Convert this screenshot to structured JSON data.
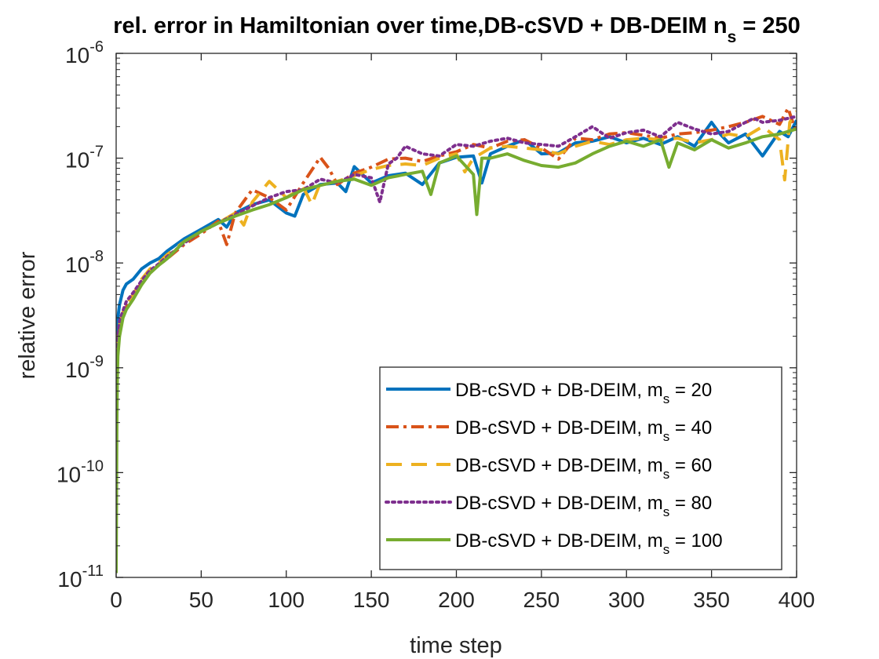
{
  "chart_data": {
    "type": "line",
    "title": "rel. error in Hamiltonian over time,DB-cSVD + DB-DEIM n",
    "title_subscript": "s",
    "title_suffix": " = 250",
    "xlabel": "time step",
    "ylabel": "relative error",
    "xlim": [
      0,
      400
    ],
    "ylim": [
      1e-11,
      1e-06
    ],
    "yscale": "log",
    "x_ticks": [
      0,
      50,
      100,
      150,
      200,
      250,
      300,
      350,
      400
    ],
    "x_tick_labels": [
      "0",
      "50",
      "100",
      "150",
      "200",
      "250",
      "300",
      "350",
      "400"
    ],
    "y_ticks": [
      {
        "base": "10",
        "exp": "-11",
        "value": 1e-11
      },
      {
        "base": "10",
        "exp": "-10",
        "value": 1e-10
      },
      {
        "base": "10",
        "exp": "-9",
        "value": 1e-09
      },
      {
        "base": "10",
        "exp": "-8",
        "value": 1e-08
      },
      {
        "base": "10",
        "exp": "-7",
        "value": 1e-07
      },
      {
        "base": "10",
        "exp": "-6",
        "value": 1e-06
      }
    ],
    "legend_position": "bottom-right",
    "series": [
      {
        "name": "DB-cSVD + DB-DEIM, m",
        "sub": "s",
        "suffix": " = 20",
        "color": "#0072BD",
        "style": "solid",
        "x": [
          0,
          1,
          2,
          4,
          6,
          10,
          15,
          20,
          25,
          30,
          40,
          50,
          60,
          65,
          70,
          80,
          90,
          100,
          105,
          110,
          120,
          130,
          135,
          140,
          150,
          160,
          170,
          180,
          190,
          200,
          210,
          215,
          220,
          230,
          240,
          250,
          260,
          270,
          280,
          290,
          300,
          310,
          320,
          330,
          340,
          350,
          355,
          360,
          370,
          380,
          390,
          395,
          400
        ],
        "y": [
          1e-09,
          3e-09,
          4e-09,
          5.5e-09,
          6.3e-09,
          7e-09,
          8.8e-09,
          1e-08,
          1.1e-08,
          1.3e-08,
          1.7e-08,
          2.1e-08,
          2.6e-08,
          2.2e-08,
          3e-08,
          3.6e-08,
          4e-08,
          3e-08,
          2.8e-08,
          4.5e-08,
          5.6e-08,
          5.8e-08,
          4.8e-08,
          8.3e-08,
          5.8e-08,
          6.8e-08,
          7.2e-08,
          5.6e-08,
          9e-08,
          1.02e-07,
          1.05e-07,
          5.8e-08,
          1.1e-07,
          1.3e-07,
          1.5e-07,
          1.1e-07,
          1.12e-07,
          1.4e-07,
          1.45e-07,
          1.6e-07,
          1.4e-07,
          1.55e-07,
          1.35e-07,
          1.6e-07,
          1.3e-07,
          2.2e-07,
          1.7e-07,
          1.4e-07,
          1.7e-07,
          1.05e-07,
          1.8e-07,
          1.6e-07,
          2.3e-07
        ]
      },
      {
        "name": "DB-cSVD + DB-DEIM, m",
        "sub": "s",
        "suffix": " = 40",
        "color": "#D95319",
        "style": "dashdot",
        "x": [
          0,
          1,
          2,
          4,
          6,
          10,
          15,
          20,
          25,
          30,
          40,
          50,
          60,
          65,
          70,
          80,
          90,
          100,
          110,
          120,
          125,
          130,
          140,
          150,
          160,
          170,
          180,
          190,
          200,
          210,
          220,
          230,
          240,
          250,
          260,
          270,
          280,
          290,
          300,
          310,
          320,
          330,
          340,
          350,
          360,
          370,
          380,
          390,
          395,
          400
        ],
        "y": [
          3.5e-10,
          1.6e-09,
          2.3e-09,
          3.2e-09,
          3.8e-09,
          4.8e-09,
          6.5e-09,
          8.2e-09,
          9.5e-09,
          1.1e-08,
          1.5e-08,
          1.9e-08,
          2.5e-08,
          1.5e-08,
          3e-08,
          5e-08,
          4.2e-08,
          3.2e-08,
          5.8e-08,
          1.02e-07,
          8e-08,
          5.6e-08,
          7.2e-08,
          8.2e-08,
          9.8e-08,
          1e-07,
          9.3e-08,
          1.05e-07,
          1.15e-07,
          1.35e-07,
          1.25e-07,
          1.45e-07,
          1.5e-07,
          1.25e-07,
          9.8e-08,
          1.55e-07,
          1.5e-07,
          1.7e-07,
          1.75e-07,
          1.65e-07,
          1.55e-07,
          1.7e-07,
          1.75e-07,
          1.85e-07,
          2e-07,
          2.2e-07,
          2.5e-07,
          2.1e-07,
          3e-07,
          1.7e-07
        ]
      },
      {
        "name": "DB-cSVD + DB-DEIM, m",
        "sub": "s",
        "suffix": " = 60",
        "color": "#EDB120",
        "style": "dashed",
        "x": [
          0,
          1,
          2,
          4,
          6,
          10,
          15,
          20,
          25,
          30,
          40,
          50,
          60,
          70,
          75,
          80,
          90,
          100,
          110,
          115,
          120,
          130,
          140,
          150,
          160,
          170,
          180,
          190,
          200,
          205,
          210,
          220,
          230,
          240,
          250,
          260,
          270,
          280,
          290,
          300,
          310,
          320,
          330,
          340,
          350,
          360,
          370,
          380,
          390,
          393,
          396,
          400
        ],
        "y": [
          1.5e-09,
          2.2e-09,
          2.6e-09,
          3.4e-09,
          4e-09,
          5e-09,
          7e-09,
          8.8e-09,
          1e-08,
          1.2e-08,
          1.6e-08,
          2e-08,
          2.4e-08,
          3e-08,
          2.3e-08,
          3.8e-08,
          6e-08,
          4.2e-08,
          5.3e-08,
          3.6e-08,
          5.8e-08,
          6e-08,
          6.8e-08,
          7.8e-08,
          8.5e-08,
          8.8e-08,
          8.5e-08,
          1e-07,
          1.1e-07,
          7.4e-08,
          1e-07,
          1.25e-07,
          1.3e-07,
          1.25e-07,
          1.2e-07,
          1.1e-07,
          1.3e-07,
          1.45e-07,
          1.35e-07,
          1.5e-07,
          1.55e-07,
          1.5e-07,
          1.55e-07,
          1.4e-07,
          1.5e-07,
          1.7e-07,
          1.6e-07,
          2e-07,
          1.5e-07,
          6.2e-08,
          2.2e-07,
          2.8e-07
        ]
      },
      {
        "name": "DB-cSVD + DB-DEIM, m",
        "sub": "s",
        "suffix": " = 80",
        "color": "#7E2F8E",
        "style": "dotted",
        "x": [
          0,
          1,
          2,
          4,
          6,
          10,
          15,
          20,
          25,
          30,
          40,
          50,
          60,
          70,
          80,
          90,
          100,
          110,
          120,
          130,
          140,
          150,
          155,
          160,
          165,
          170,
          180,
          190,
          200,
          210,
          220,
          230,
          240,
          250,
          260,
          270,
          280,
          290,
          300,
          310,
          320,
          330,
          340,
          350,
          360,
          370,
          375,
          380,
          390,
          400
        ],
        "y": [
          4e-10,
          2e-09,
          2.8e-09,
          3.5e-09,
          4.3e-09,
          5.2e-09,
          6.8e-09,
          8.5e-09,
          9.8e-09,
          1.15e-08,
          1.55e-08,
          2e-08,
          2.4e-08,
          2.9e-08,
          3.5e-08,
          4.2e-08,
          4.8e-08,
          5e-08,
          6.3e-08,
          5.8e-08,
          7e-08,
          6.5e-08,
          3.8e-08,
          8.8e-08,
          1e-07,
          1.3e-07,
          1.1e-07,
          1.05e-07,
          1.35e-07,
          1.3e-07,
          1.45e-07,
          1.55e-07,
          1.4e-07,
          1.35e-07,
          1.3e-07,
          1.6e-07,
          2e-07,
          1.55e-07,
          1.75e-07,
          1.85e-07,
          1.6e-07,
          2.2e-07,
          1.9e-07,
          1.7e-07,
          1.8e-07,
          2.2e-07,
          2.4e-07,
          2.2e-07,
          2.3e-07,
          2.5e-07
        ]
      },
      {
        "name": "DB-cSVD + DB-DEIM, m",
        "sub": "s",
        "suffix": " = 100",
        "color": "#77AC30",
        "style": "solid",
        "x": [
          0,
          0.4,
          0.7,
          1,
          2,
          4,
          6,
          10,
          15,
          20,
          25,
          30,
          40,
          50,
          60,
          70,
          80,
          90,
          100,
          110,
          120,
          130,
          140,
          150,
          160,
          170,
          180,
          185,
          190,
          200,
          210,
          212,
          215,
          220,
          230,
          240,
          250,
          260,
          270,
          280,
          290,
          300,
          310,
          320,
          325,
          330,
          340,
          350,
          360,
          370,
          380,
          390,
          400
        ],
        "y": [
          1.1e-11,
          3e-10,
          8e-10,
          1.3e-09,
          2e-09,
          3e-09,
          3.6e-09,
          4.5e-09,
          6.2e-09,
          8e-09,
          9.5e-09,
          1.1e-08,
          1.6e-08,
          2e-08,
          2.4e-08,
          2.8e-08,
          3.2e-08,
          3.6e-08,
          4.2e-08,
          5e-08,
          5.5e-08,
          6e-08,
          6.3e-08,
          5.5e-08,
          6.5e-08,
          7e-08,
          7.5e-08,
          4.5e-08,
          9e-08,
          1.05e-07,
          7e-08,
          2.9e-08,
          1e-07,
          1e-07,
          1.1e-07,
          9.5e-08,
          8.5e-08,
          8.2e-08,
          9e-08,
          1.1e-07,
          1.3e-07,
          1.45e-07,
          1.3e-07,
          1.5e-07,
          8.2e-08,
          1.4e-07,
          1.2e-07,
          1.5e-07,
          1.25e-07,
          1.4e-07,
          1.6e-07,
          1.7e-07,
          1.9e-07
        ]
      }
    ]
  }
}
